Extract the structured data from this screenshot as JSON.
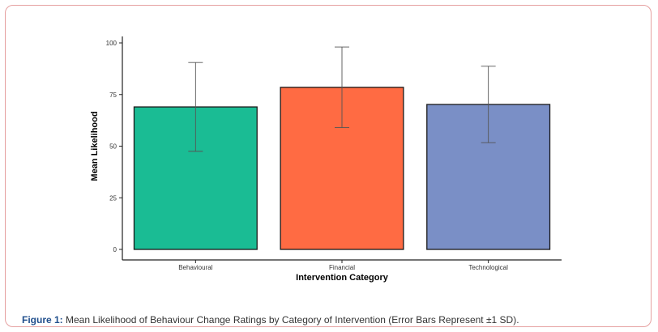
{
  "chart_data": {
    "type": "bar",
    "categories": [
      "Behavioural",
      "Financial",
      "Technological"
    ],
    "values": [
      69,
      78.5,
      70.2
    ],
    "error_sd": [
      21.5,
      19.5,
      18.5
    ],
    "xlabel": "Intervention Category",
    "ylabel": "Mean Likelihood",
    "ylim": [
      0,
      100
    ],
    "yticks": [
      0,
      25,
      50,
      75,
      100
    ],
    "grid": false,
    "colors": [
      "#1abc94",
      "#ff6b43",
      "#7a8fc6"
    ]
  },
  "caption": {
    "label": "Figure 1:",
    "text": " Mean Likelihood of Behaviour Change Ratings by Category of Intervention (Error Bars Represent ±1 SD)."
  }
}
